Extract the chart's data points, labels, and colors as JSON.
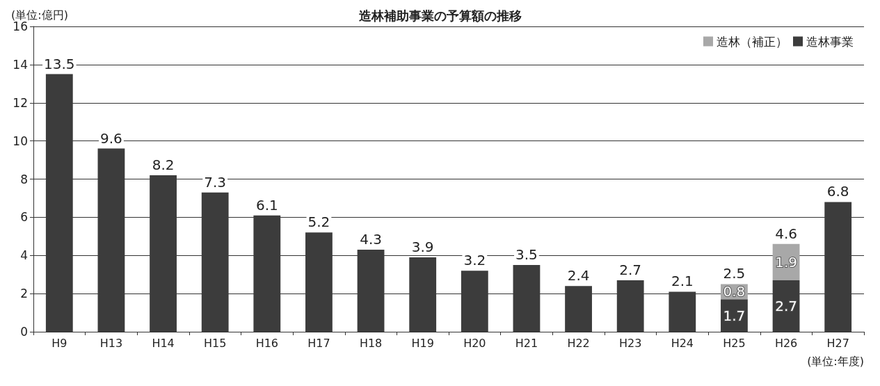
{
  "chart_data": {
    "type": "bar",
    "title": "造林補助事業の予算額の推移",
    "ylabel": "(単位:億円)",
    "xlabel": "(単位:年度)",
    "categories": [
      "H9",
      "H13",
      "H14",
      "H15",
      "H16",
      "H17",
      "H18",
      "H19",
      "H20",
      "H21",
      "H22",
      "H23",
      "H24",
      "H25",
      "H26",
      "H27"
    ],
    "stacked": true,
    "series": [
      {
        "name": "造林事業",
        "color": "#3c3c3c",
        "values": [
          13.5,
          9.6,
          8.2,
          7.3,
          6.1,
          5.2,
          4.3,
          3.9,
          3.2,
          3.5,
          2.4,
          2.7,
          2.1,
          1.7,
          2.7,
          6.8
        ],
        "value_labels": [
          null,
          null,
          null,
          null,
          null,
          null,
          null,
          null,
          null,
          null,
          null,
          null,
          null,
          "1.7",
          "2.7",
          null
        ]
      },
      {
        "name": "造林（補正）",
        "color": "#a8a8a8",
        "values": [
          null,
          null,
          null,
          null,
          null,
          null,
          null,
          null,
          null,
          null,
          null,
          null,
          null,
          0.8,
          1.9,
          null
        ],
        "value_labels": [
          null,
          null,
          null,
          null,
          null,
          null,
          null,
          null,
          null,
          null,
          null,
          null,
          null,
          "0.8",
          "1.9",
          null
        ]
      }
    ],
    "totals": [
      "13.5",
      "9.6",
      "8.2",
      "7.3",
      "6.1",
      "5.2",
      "4.3",
      "3.9",
      "3.2",
      "3.5",
      "2.4",
      "2.7",
      "2.1",
      "2.5",
      "4.6",
      "6.8"
    ],
    "ylim": [
      0,
      16
    ],
    "yticks": [
      0,
      2,
      4,
      6,
      8,
      10,
      12,
      14,
      16
    ],
    "grid": "y",
    "legend": "top right"
  }
}
